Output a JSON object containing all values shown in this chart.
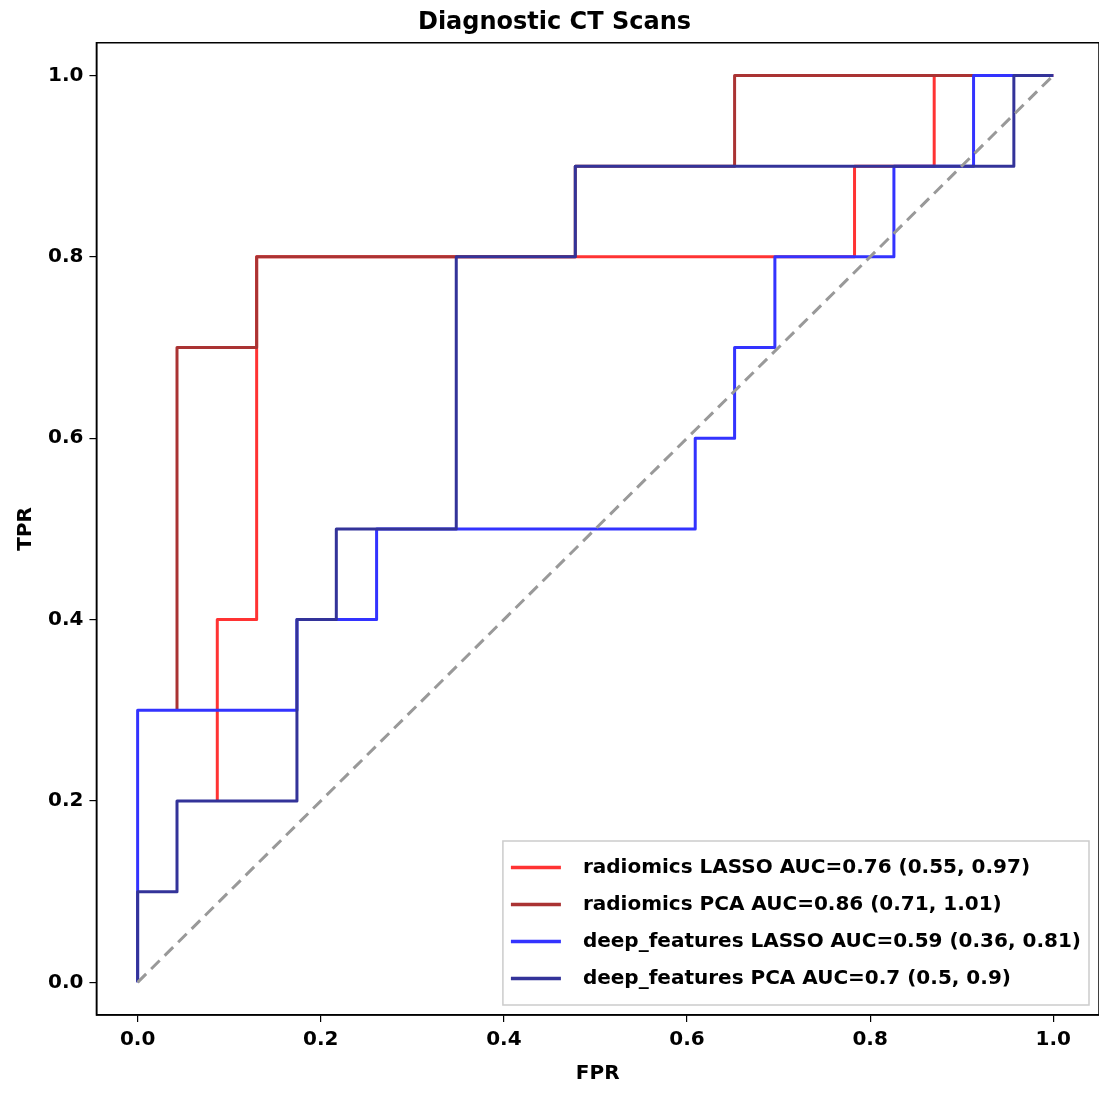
{
  "chart_data": {
    "type": "line",
    "title": "Diagnostic CT Scans",
    "xlabel": "FPR",
    "ylabel": "TPR",
    "xlim": [
      -0.045,
      1.05
    ],
    "ylim": [
      -0.036,
      1.036
    ],
    "xticks": [
      {
        "value": 0,
        "label": "0.0"
      },
      {
        "value": 0.2,
        "label": "0.2"
      },
      {
        "value": 0.4,
        "label": "0.4"
      },
      {
        "value": 0.6,
        "label": "0.6"
      },
      {
        "value": 0.8,
        "label": "0.8"
      },
      {
        "value": 1,
        "label": "1.0"
      }
    ],
    "yticks": [
      {
        "value": 0,
        "label": "0.0"
      },
      {
        "value": 0.2,
        "label": "0.2"
      },
      {
        "value": 0.4,
        "label": "0.4"
      },
      {
        "value": 0.6,
        "label": "0.6"
      },
      {
        "value": 0.8,
        "label": "0.8"
      },
      {
        "value": 1,
        "label": "1.0"
      }
    ],
    "grid": false,
    "legend": "bottom right",
    "marker": "none",
    "series": [
      {
        "name": "radiomics LASSO AUC=0.76 (0.55, 0.97)",
        "color": "#ff3333",
        "x": [
          0.087,
          0.087,
          0.13,
          0.13,
          0.783,
          0.783,
          0.87,
          0.87,
          1
        ],
        "values": [
          0.2,
          0.4,
          0.4,
          0.8,
          0.8,
          0.9,
          0.9,
          1,
          1
        ]
      },
      {
        "name": "radiomics PCA AUC=0.86 (0.71, 1.01)",
        "color": "#aa3333",
        "x": [
          0.043,
          0.043,
          0.13,
          0.13,
          0.478,
          0.478,
          0.652,
          0.652,
          1
        ],
        "values": [
          0.3,
          0.7,
          0.7,
          0.8,
          0.8,
          0.9,
          0.9,
          1,
          1
        ]
      },
      {
        "name": "deep_features LASSO AUC=0.59 (0.36, 0.81)",
        "color": "#3333ff",
        "x": [
          0,
          0,
          0.174,
          0.174,
          0.261,
          0.261,
          0.609,
          0.609,
          0.652,
          0.652,
          0.696,
          0.696,
          0.826,
          0.826,
          0.913,
          0.913,
          1
        ],
        "values": [
          0,
          0.3,
          0.3,
          0.4,
          0.4,
          0.5,
          0.5,
          0.6,
          0.6,
          0.7,
          0.7,
          0.8,
          0.8,
          0.9,
          0.9,
          1,
          1
        ]
      },
      {
        "name": "deep_features PCA AUC=0.7 (0.5, 0.9)",
        "color": "#333399",
        "x": [
          0,
          0,
          0.043,
          0.043,
          0.174,
          0.174,
          0.217,
          0.217,
          0.348,
          0.348,
          0.478,
          0.478,
          0.957,
          0.957,
          1
        ],
        "values": [
          0,
          0.1,
          0.1,
          0.2,
          0.2,
          0.4,
          0.4,
          0.5,
          0.5,
          0.8,
          0.8,
          0.9,
          0.9,
          1,
          1
        ]
      },
      {
        "color": "#999999",
        "line_style": "dashed",
        "x": [
          0,
          1
        ],
        "values": [
          0,
          1
        ]
      }
    ]
  }
}
